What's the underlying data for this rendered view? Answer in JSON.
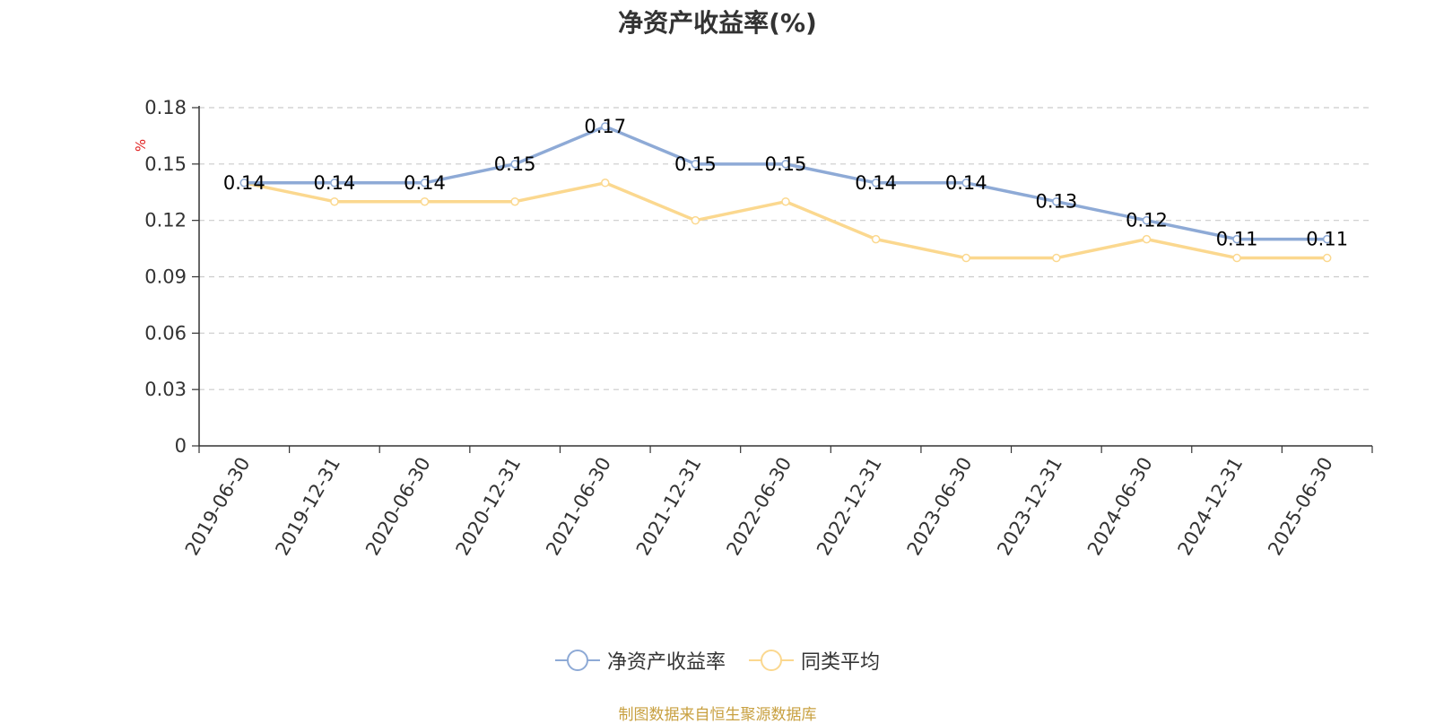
{
  "chart_data": {
    "type": "line",
    "title": "净资产收益率(%)",
    "ylabel": "%",
    "xlabel": "",
    "ylim": [
      0,
      0.18
    ],
    "yticks": [
      "0",
      "0.03",
      "0.06",
      "0.09",
      "0.12",
      "0.15",
      "0.18"
    ],
    "grid": true,
    "legend_position": "bottom",
    "categories": [
      "2019-06-30",
      "2019-12-31",
      "2020-06-30",
      "2020-12-31",
      "2021-06-30",
      "2021-12-31",
      "2022-06-30",
      "2022-12-31",
      "2023-06-30",
      "2023-12-31",
      "2024-06-30",
      "2024-12-31",
      "2025-06-30"
    ],
    "series": [
      {
        "name": "净资产收益率",
        "color": "#8eaad6",
        "values": [
          0.14,
          0.14,
          0.14,
          0.15,
          0.17,
          0.15,
          0.15,
          0.14,
          0.14,
          0.13,
          0.12,
          0.11,
          0.11
        ],
        "labels": [
          "0.14",
          "0.14",
          "0.14",
          "0.15",
          "0.17",
          "0.15",
          "0.15",
          "0.14",
          "0.14",
          "0.13",
          "0.12",
          "0.11",
          "0.11"
        ]
      },
      {
        "name": "同类平均",
        "color": "#fbd88f",
        "values": [
          0.14,
          0.13,
          0.13,
          0.13,
          0.14,
          0.12,
          0.13,
          0.11,
          0.1,
          0.1,
          0.11,
          0.1,
          0.1
        ]
      }
    ]
  },
  "source_note": "制图数据来自恒生聚源数据库"
}
